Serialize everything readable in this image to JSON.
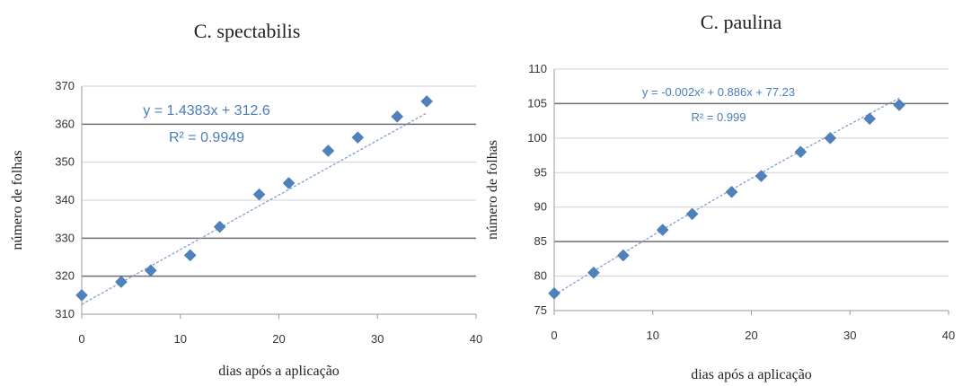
{
  "chart_data": [
    {
      "type": "scatter",
      "title": "C. spectabilis",
      "xlabel": "dias após a aplicação",
      "ylabel": "número de folhas",
      "xlim": [
        0,
        40
      ],
      "ylim": [
        310,
        370
      ],
      "xticks": [
        0,
        10,
        20,
        30,
        40
      ],
      "yticks": [
        310,
        320,
        330,
        340,
        350,
        360,
        370
      ],
      "x": [
        0,
        4,
        7,
        11,
        14,
        18,
        21,
        25,
        28,
        32,
        35
      ],
      "y": [
        315,
        318.5,
        321.5,
        325.5,
        333,
        341.5,
        344.5,
        353,
        356.5,
        362,
        366
      ],
      "trendline": {
        "type": "linear",
        "slope": 1.4383,
        "intercept": 312.6
      },
      "equation": "y = 1.4383x + 312.6",
      "r2": "R² = 0.9949",
      "grid": true,
      "legend": "none"
    },
    {
      "type": "scatter",
      "title": "C. paulina",
      "xlabel": "dias após a aplicação",
      "ylabel": "número de folhas",
      "xlim": [
        0,
        40
      ],
      "ylim": [
        75,
        110
      ],
      "xticks": [
        0,
        10,
        20,
        30,
        40
      ],
      "yticks": [
        75,
        80,
        85,
        90,
        95,
        100,
        105,
        110
      ],
      "x": [
        0,
        4,
        7,
        11,
        14,
        18,
        21,
        25,
        28,
        32,
        35
      ],
      "y": [
        77.5,
        80.5,
        83,
        86.7,
        89,
        92.2,
        94.5,
        98,
        100,
        102.8,
        104.8
      ],
      "trendline": {
        "type": "quadratic",
        "a": -0.002,
        "b": 0.886,
        "c": 77.23
      },
      "equation": "y = -0.002x² + 0.886x + 77.23",
      "r2": "R² = 0.999",
      "grid": true,
      "legend": "none"
    }
  ]
}
